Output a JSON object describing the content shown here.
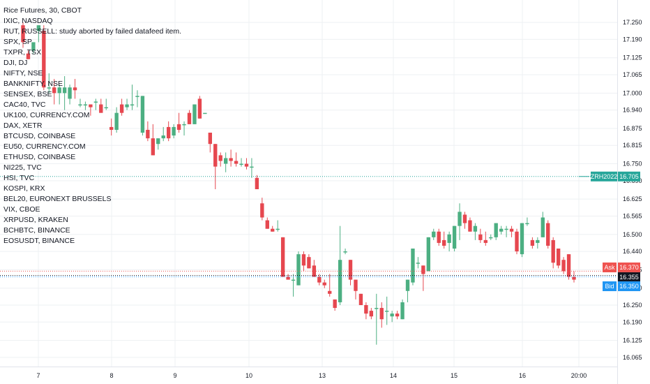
{
  "chart_data": {
    "type": "candlestick",
    "title": "Rice Futures, 30, CBOT",
    "error_message": "RUT, RUSSELL: study aborted by failed datafeed item.",
    "comparison_symbols": [
      "IXIC, NASDAQ",
      "SPX, SP",
      "TXPR, TSX",
      "DJI, DJ",
      "NIFTY, NSE",
      "BANKNIFTY, NSE",
      "SENSEX, BSE",
      "CAC40, TVC",
      "UK100, CURRENCY.COM",
      "DAX, XETR",
      "BTCUSD, COINBASE",
      "EU50, CURRENCY.COM",
      "ETHUSD, COINBASE",
      "NI225, TVC",
      "HSI, TVC",
      "KOSPI, KRX",
      "BEL20, EURONEXT BRUSSELS",
      "VIX, CBOE",
      "XRPUSD, KRAKEN",
      "BCHBTC, BINANCE",
      "EOSUSDT, BINANCE"
    ],
    "y_ticks": [
      "17.250",
      "17.190",
      "17.125",
      "17.065",
      "17.000",
      "16.940",
      "16.875",
      "16.815",
      "16.750",
      "16.690",
      "16.625",
      "16.565",
      "16.500",
      "16.440",
      "16.375",
      "16.310",
      "16.250",
      "16.190",
      "16.125",
      "16.065"
    ],
    "x_ticks": [
      "7",
      "8",
      "9",
      "10",
      "13",
      "14",
      "15",
      "16",
      "20:00"
    ],
    "ylim": [
      16.045,
      17.275
    ],
    "price_tags": [
      {
        "label": "Ask",
        "value": "16.370",
        "color": "#ef5350"
      },
      {
        "label": "",
        "value": "16.355",
        "color": "#131722"
      },
      {
        "label": "Bid",
        "value": "16.350",
        "color": "#2196f3"
      }
    ],
    "compare_tag": {
      "symbol": "ZRH2022",
      "value": "16.705",
      "color": "#26a69a"
    },
    "colors": {
      "up": "#4caf82",
      "down": "#e6474f",
      "grid": "#eef0f3",
      "text": "#131722"
    },
    "candles": [
      {
        "o": 17.24,
        "h": 17.25,
        "l": 17.16,
        "c": 17.18
      },
      {
        "o": 17.14,
        "h": 17.15,
        "l": 17.12,
        "c": 17.12
      },
      {
        "o": 17.15,
        "h": 17.18,
        "l": 17.14,
        "c": 17.18
      },
      {
        "o": 17.22,
        "h": 17.24,
        "l": 17.18,
        "c": 17.24
      },
      {
        "o": 17.22,
        "h": 17.24,
        "l": 17.01,
        "c": 17.02
      },
      {
        "o": 17.02,
        "h": 17.07,
        "l": 17.0,
        "c": 17.02
      },
      {
        "o": 17.02,
        "h": 17.05,
        "l": 16.96,
        "c": 17.0
      },
      {
        "o": 17.0,
        "h": 17.03,
        "l": 16.96,
        "c": 17.02
      },
      {
        "o": 17.0,
        "h": 17.06,
        "l": 16.94,
        "c": 17.02
      },
      {
        "o": 16.98,
        "h": 17.03,
        "l": 16.96,
        "c": 17.02
      },
      {
        "o": 17.02,
        "h": 17.05,
        "l": 16.98,
        "c": 17.01
      },
      {
        "o": 16.96,
        "h": 16.98,
        "l": 16.95,
        "c": 16.96
      },
      {
        "o": 16.96,
        "h": 16.97,
        "l": 16.94,
        "c": 16.96
      },
      {
        "o": 16.96,
        "h": 16.96,
        "l": 16.92,
        "c": 16.95
      },
      {
        "o": 16.97,
        "h": 16.98,
        "l": 16.94,
        "c": 16.97
      },
      {
        "o": 16.96,
        "h": 16.98,
        "l": 16.94,
        "c": 16.93
      },
      {
        "o": 16.95,
        "h": 16.98,
        "l": 16.94,
        "c": 16.95
      },
      {
        "o": 16.88,
        "h": 16.91,
        "l": 16.85,
        "c": 16.87
      },
      {
        "o": 16.87,
        "h": 16.95,
        "l": 16.86,
        "c": 16.93
      },
      {
        "o": 16.96,
        "h": 16.98,
        "l": 16.92,
        "c": 16.93
      },
      {
        "o": 16.95,
        "h": 16.98,
        "l": 16.94,
        "c": 16.96
      },
      {
        "o": 16.96,
        "h": 17.03,
        "l": 16.94,
        "c": 16.96
      },
      {
        "o": 16.99,
        "h": 17.01,
        "l": 16.95,
        "c": 16.99
      },
      {
        "o": 16.86,
        "h": 16.99,
        "l": 16.85,
        "c": 16.99
      },
      {
        "o": 16.87,
        "h": 16.9,
        "l": 16.83,
        "c": 16.84
      },
      {
        "o": 16.84,
        "h": 16.89,
        "l": 16.78,
        "c": 16.78
      },
      {
        "o": 16.82,
        "h": 16.84,
        "l": 16.8,
        "c": 16.84
      },
      {
        "o": 16.84,
        "h": 16.88,
        "l": 16.83,
        "c": 16.85
      },
      {
        "o": 16.88,
        "h": 16.9,
        "l": 16.83,
        "c": 16.84
      },
      {
        "o": 16.85,
        "h": 16.89,
        "l": 16.84,
        "c": 16.88
      },
      {
        "o": 16.89,
        "h": 16.93,
        "l": 16.86,
        "c": 16.87
      },
      {
        "o": 16.89,
        "h": 16.9,
        "l": 16.85,
        "c": 16.89
      },
      {
        "o": 16.93,
        "h": 16.94,
        "l": 16.89,
        "c": 16.89
      },
      {
        "o": 16.89,
        "h": 16.96,
        "l": 16.89,
        "c": 16.96
      },
      {
        "o": 16.98,
        "h": 16.99,
        "l": 16.91,
        "c": 16.91
      },
      {
        "o": 16.93,
        "h": 16.93,
        "l": 16.93,
        "c": 16.93
      },
      {
        "o": 16.86,
        "h": 16.86,
        "l": 16.79,
        "c": 16.82
      },
      {
        "o": 16.82,
        "h": 16.82,
        "l": 16.66,
        "c": 16.74
      },
      {
        "o": 16.78,
        "h": 16.79,
        "l": 16.74,
        "c": 16.76
      },
      {
        "o": 16.75,
        "h": 16.79,
        "l": 16.72,
        "c": 16.77
      },
      {
        "o": 16.77,
        "h": 16.8,
        "l": 16.74,
        "c": 16.76
      },
      {
        "o": 16.76,
        "h": 16.79,
        "l": 16.74,
        "c": 16.75
      },
      {
        "o": 16.75,
        "h": 16.77,
        "l": 16.74,
        "c": 16.75
      },
      {
        "o": 16.75,
        "h": 16.77,
        "l": 16.73,
        "c": 16.74
      },
      {
        "o": 16.74,
        "h": 16.77,
        "l": 16.7,
        "c": 16.74
      },
      {
        "o": 16.7,
        "h": 16.71,
        "l": 16.66,
        "c": 16.66
      },
      {
        "o": 16.61,
        "h": 16.63,
        "l": 16.55,
        "c": 16.56
      },
      {
        "o": 16.55,
        "h": 16.56,
        "l": 16.52,
        "c": 16.52
      },
      {
        "o": 16.52,
        "h": 16.53,
        "l": 16.51,
        "c": 16.51
      },
      {
        "o": 16.52,
        "h": 16.55,
        "l": 16.51,
        "c": 16.52
      },
      {
        "o": 16.49,
        "h": 16.49,
        "l": 16.35,
        "c": 16.35
      },
      {
        "o": 16.35,
        "h": 16.36,
        "l": 16.34,
        "c": 16.34
      },
      {
        "o": 16.34,
        "h": 16.36,
        "l": 16.28,
        "c": 16.34
      },
      {
        "o": 16.32,
        "h": 16.44,
        "l": 16.32,
        "c": 16.43
      },
      {
        "o": 16.43,
        "h": 16.44,
        "l": 16.37,
        "c": 16.39
      },
      {
        "o": 16.42,
        "h": 16.43,
        "l": 16.38,
        "c": 16.38
      },
      {
        "o": 16.39,
        "h": 16.41,
        "l": 16.35,
        "c": 16.35
      },
      {
        "o": 16.35,
        "h": 16.36,
        "l": 16.32,
        "c": 16.33
      },
      {
        "o": 16.33,
        "h": 16.34,
        "l": 16.31,
        "c": 16.32
      },
      {
        "o": 16.3,
        "h": 16.36,
        "l": 16.28,
        "c": 16.29
      },
      {
        "o": 16.27,
        "h": 16.27,
        "l": 16.23,
        "c": 16.24
      },
      {
        "o": 16.26,
        "h": 16.53,
        "l": 16.25,
        "c": 16.41
      },
      {
        "o": 16.44,
        "h": 16.45,
        "l": 16.43,
        "c": 16.44
      },
      {
        "o": 16.41,
        "h": 16.41,
        "l": 16.32,
        "c": 16.34
      },
      {
        "o": 16.34,
        "h": 16.34,
        "l": 16.27,
        "c": 16.3
      },
      {
        "o": 16.29,
        "h": 16.29,
        "l": 16.25,
        "c": 16.25
      },
      {
        "o": 16.25,
        "h": 16.26,
        "l": 16.2,
        "c": 16.22
      },
      {
        "o": 16.23,
        "h": 16.24,
        "l": 16.2,
        "c": 16.21
      },
      {
        "o": 16.24,
        "h": 16.29,
        "l": 16.11,
        "c": 16.24
      },
      {
        "o": 16.24,
        "h": 16.26,
        "l": 16.17,
        "c": 16.2
      },
      {
        "o": 16.23,
        "h": 16.28,
        "l": 16.18,
        "c": 16.23
      },
      {
        "o": 16.21,
        "h": 16.23,
        "l": 16.19,
        "c": 16.22
      },
      {
        "o": 16.22,
        "h": 16.23,
        "l": 16.2,
        "c": 16.21
      },
      {
        "o": 16.2,
        "h": 16.27,
        "l": 16.2,
        "c": 16.26
      },
      {
        "o": 16.3,
        "h": 16.34,
        "l": 16.26,
        "c": 16.34
      },
      {
        "o": 16.33,
        "h": 16.45,
        "l": 16.32,
        "c": 16.45
      },
      {
        "o": 16.4,
        "h": 16.42,
        "l": 16.38,
        "c": 16.4
      },
      {
        "o": 16.39,
        "h": 16.39,
        "l": 16.3,
        "c": 16.36
      },
      {
        "o": 16.37,
        "h": 16.49,
        "l": 16.37,
        "c": 16.49
      },
      {
        "o": 16.49,
        "h": 16.52,
        "l": 16.48,
        "c": 16.51
      },
      {
        "o": 16.51,
        "h": 16.52,
        "l": 16.46,
        "c": 16.47
      },
      {
        "o": 16.48,
        "h": 16.51,
        "l": 16.45,
        "c": 16.46
      },
      {
        "o": 16.47,
        "h": 16.51,
        "l": 16.44,
        "c": 16.5
      },
      {
        "o": 16.45,
        "h": 16.53,
        "l": 16.44,
        "c": 16.53
      },
      {
        "o": 16.53,
        "h": 16.61,
        "l": 16.48,
        "c": 16.58
      },
      {
        "o": 16.57,
        "h": 16.58,
        "l": 16.52,
        "c": 16.54
      },
      {
        "o": 16.55,
        "h": 16.56,
        "l": 16.51,
        "c": 16.51
      },
      {
        "o": 16.51,
        "h": 16.54,
        "l": 16.48,
        "c": 16.53
      },
      {
        "o": 16.5,
        "h": 16.52,
        "l": 16.47,
        "c": 16.48
      },
      {
        "o": 16.48,
        "h": 16.51,
        "l": 16.46,
        "c": 16.47
      },
      {
        "o": 16.49,
        "h": 16.5,
        "l": 16.48,
        "c": 16.49
      },
      {
        "o": 16.49,
        "h": 16.54,
        "l": 16.48,
        "c": 16.54
      },
      {
        "o": 16.51,
        "h": 16.53,
        "l": 16.5,
        "c": 16.52
      },
      {
        "o": 16.52,
        "h": 16.53,
        "l": 16.49,
        "c": 16.52
      },
      {
        "o": 16.52,
        "h": 16.53,
        "l": 16.49,
        "c": 16.51
      },
      {
        "o": 16.51,
        "h": 16.52,
        "l": 16.43,
        "c": 16.44
      },
      {
        "o": 16.43,
        "h": 16.54,
        "l": 16.42,
        "c": 16.54
      },
      {
        "o": 16.54,
        "h": 16.56,
        "l": 16.53,
        "c": 16.54
      },
      {
        "o": 16.48,
        "h": 16.49,
        "l": 16.45,
        "c": 16.46
      },
      {
        "o": 16.47,
        "h": 16.49,
        "l": 16.45,
        "c": 16.48
      },
      {
        "o": 16.49,
        "h": 16.58,
        "l": 16.49,
        "c": 16.56
      },
      {
        "o": 16.54,
        "h": 16.55,
        "l": 16.45,
        "c": 16.46
      },
      {
        "o": 16.48,
        "h": 16.49,
        "l": 16.38,
        "c": 16.4
      },
      {
        "o": 16.45,
        "h": 16.45,
        "l": 16.38,
        "c": 16.39
      },
      {
        "o": 16.41,
        "h": 16.42,
        "l": 16.36,
        "c": 16.37
      },
      {
        "o": 16.43,
        "h": 16.43,
        "l": 16.34,
        "c": 16.35
      },
      {
        "o": 16.35,
        "h": 16.37,
        "l": 16.33,
        "c": 16.34
      }
    ]
  }
}
